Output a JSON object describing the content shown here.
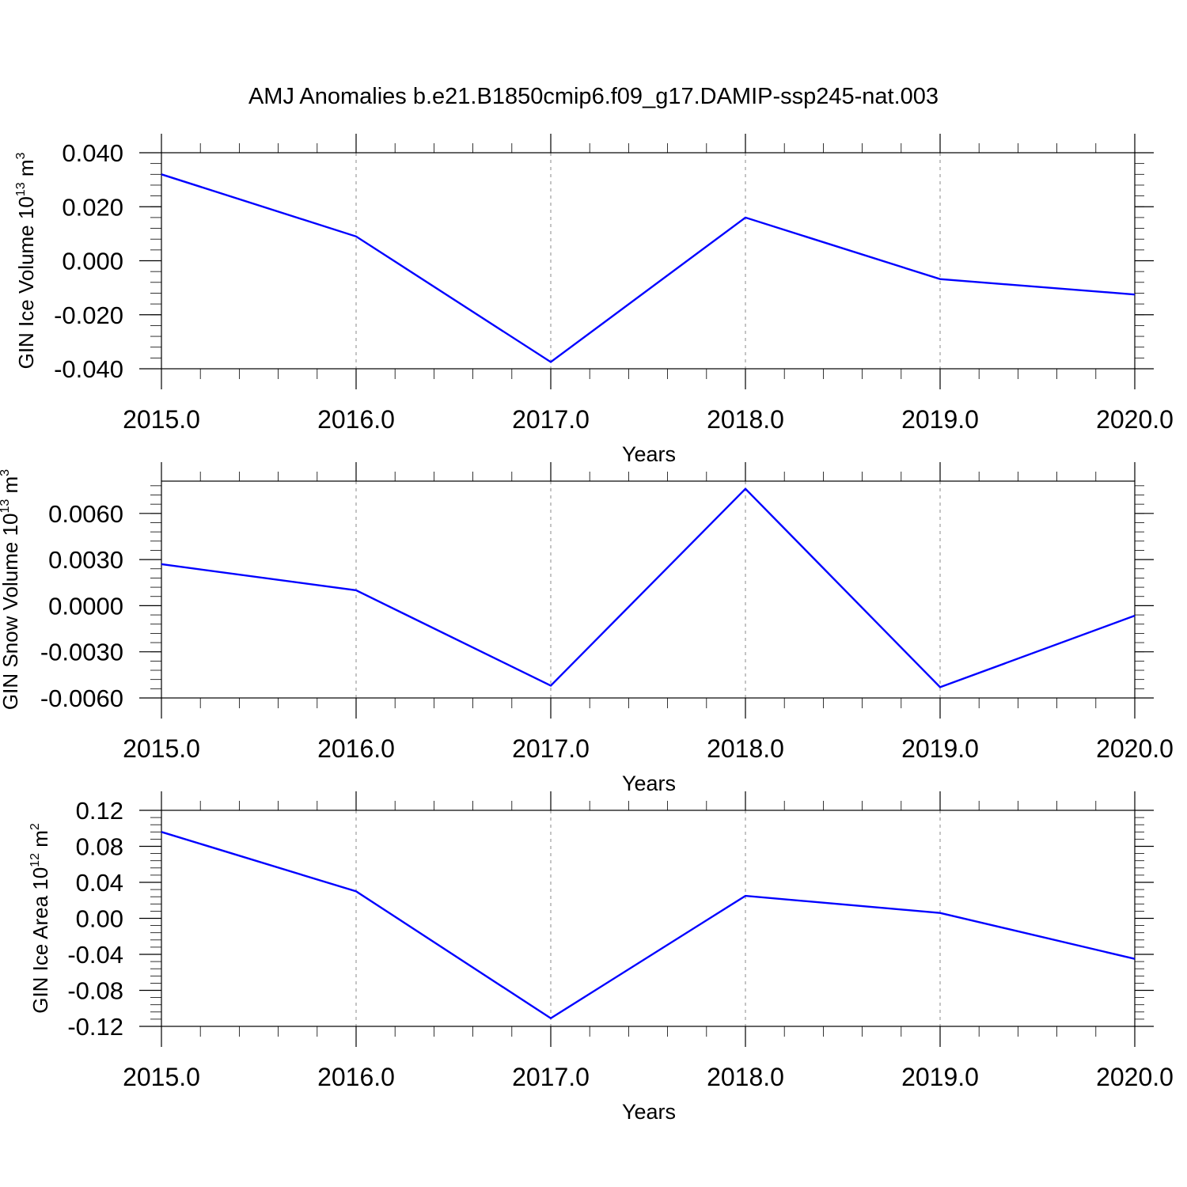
{
  "title": "AMJ Anomalies b.e21.B1850cmip6.f09_g17.DAMIP-ssp245-nat.003",
  "chart_data": [
    {
      "type": "line",
      "title": "",
      "xlabel": "Years",
      "ylabel": "GIN Ice Volume 10",
      "ylabel_exp": "13",
      "ylabel_unit": "m",
      "ylabel_unit_exp": "3",
      "x": [
        2015,
        2016,
        2017,
        2018,
        2019,
        2020
      ],
      "x_tick_labels": [
        "2015.0",
        "2016.0",
        "2017.0",
        "2018.0",
        "2019.0",
        "2020.0"
      ],
      "xlim": [
        2015,
        2020
      ],
      "y_ticks": [
        0.04,
        0.02,
        0.0,
        -0.02,
        -0.04
      ],
      "y_tick_labels": [
        "0.040",
        "0.020",
        "0.000",
        "-0.020",
        "-0.040"
      ],
      "ylim": [
        -0.04,
        0.04
      ],
      "series": [
        {
          "values": [
            0.032,
            0.009,
            -0.0375,
            0.016,
            -0.0068,
            -0.0125
          ]
        }
      ],
      "line_color": "#0000ff",
      "vertical_grid": "dashed"
    },
    {
      "type": "line",
      "title": "",
      "xlabel": "Years",
      "ylabel": "GIN Snow Volume 10",
      "ylabel_exp": "13",
      "ylabel_unit": "m",
      "ylabel_unit_exp": "3",
      "x": [
        2015,
        2016,
        2017,
        2018,
        2019,
        2020
      ],
      "x_tick_labels": [
        "2015.0",
        "2016.0",
        "2017.0",
        "2018.0",
        "2019.0",
        "2020.0"
      ],
      "xlim": [
        2015,
        2020
      ],
      "y_ticks": [
        0.006,
        0.003,
        0.0,
        -0.003,
        -0.006
      ],
      "y_tick_labels": [
        "0.0060",
        "0.0030",
        "0.0000",
        "-0.0030",
        "-0.0060"
      ],
      "ylim": [
        -0.006,
        0.0081
      ],
      "series": [
        {
          "values": [
            0.0027,
            0.001,
            -0.0052,
            0.0076,
            -0.0053,
            -0.00065
          ]
        }
      ],
      "line_color": "#0000ff",
      "vertical_grid": "dashed"
    },
    {
      "type": "line",
      "title": "",
      "xlabel": "Years",
      "ylabel": "GIN Ice Area 10",
      "ylabel_exp": "12",
      "ylabel_unit": "m",
      "ylabel_unit_exp": "2",
      "x": [
        2015,
        2016,
        2017,
        2018,
        2019,
        2020
      ],
      "x_tick_labels": [
        "2015.0",
        "2016.0",
        "2017.0",
        "2018.0",
        "2019.0",
        "2020.0"
      ],
      "xlim": [
        2015,
        2020
      ],
      "y_ticks": [
        0.12,
        0.08,
        0.04,
        0.0,
        -0.04,
        -0.08,
        -0.12
      ],
      "y_tick_labels": [
        "0.12",
        "0.08",
        "0.04",
        "0.00",
        "-0.04",
        "-0.08",
        "-0.12"
      ],
      "ylim": [
        -0.12,
        0.12
      ],
      "series": [
        {
          "values": [
            0.096,
            0.03,
            -0.111,
            0.025,
            0.006,
            -0.045
          ]
        }
      ],
      "line_color": "#0000ff",
      "vertical_grid": "dashed"
    }
  ]
}
